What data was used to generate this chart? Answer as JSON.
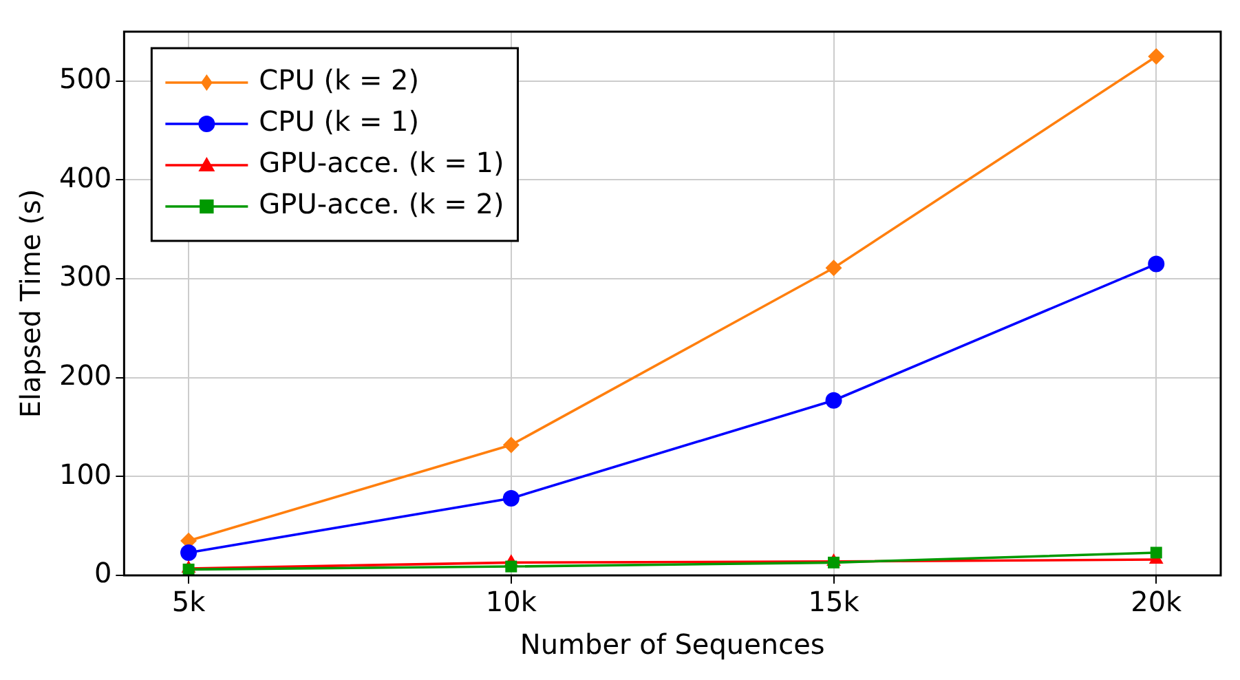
{
  "chart_data": {
    "type": "line",
    "xlabel": "Number of Sequences",
    "ylabel": "Elapsed Time (s)",
    "x": [
      5000,
      10000,
      15000,
      20000
    ],
    "xlim": [
      4000,
      21000
    ],
    "xticks": [
      {
        "value": 5000,
        "label": "5k"
      },
      {
        "value": 10000,
        "label": "10k"
      },
      {
        "value": 15000,
        "label": "15k"
      },
      {
        "value": 20000,
        "label": "20k"
      }
    ],
    "ylim": [
      0,
      550
    ],
    "yticks": [
      0,
      100,
      200,
      300,
      400,
      500
    ],
    "grid": true,
    "legend": "top left",
    "line_style": "solid",
    "series": [
      {
        "name": "CPU (k = 2)",
        "color": "#ff7f0e",
        "marker": "diamond",
        "values": [
          35,
          132,
          311,
          525
        ]
      },
      {
        "name": "CPU (k = 1)",
        "color": "#0000ff",
        "marker": "circle",
        "values": [
          23,
          78,
          177,
          315
        ]
      },
      {
        "name": "GPU-acce. (k = 1)",
        "color": "#ff0000",
        "marker": "triangle",
        "values": [
          7,
          13,
          14,
          16
        ]
      },
      {
        "name": "GPU-acce. (k = 2)",
        "color": "#009900",
        "marker": "square",
        "values": [
          6,
          9,
          13,
          23
        ]
      }
    ]
  }
}
